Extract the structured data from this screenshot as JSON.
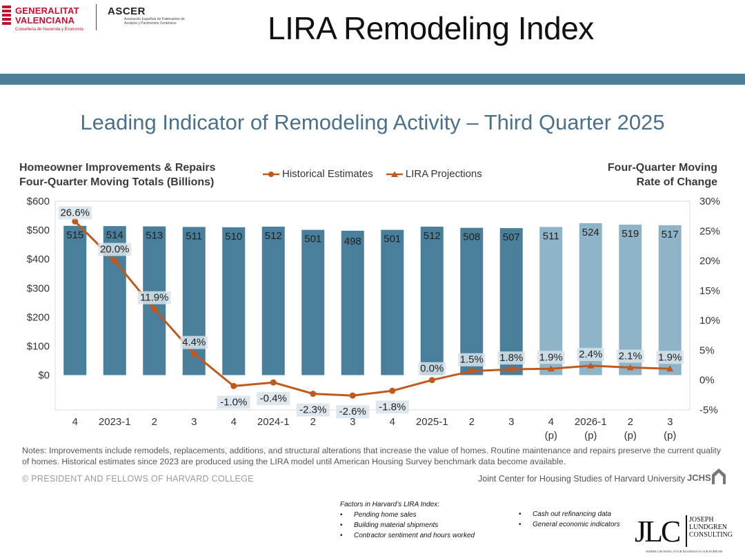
{
  "header": {
    "logo_gv_line1": "GENERALITAT",
    "logo_gv_line2": "VALENCIANA",
    "logo_gv_sub": "Conselleria de Hacienda y Economía",
    "logo_ascer_name": "ASCER",
    "logo_ascer_sub": "Asociación Española de Fabricantes de Azulejos y Pavimentos Cerámicos",
    "title": "LIRA Remodeling Index",
    "band_color": "#4e7f98"
  },
  "chart_data": {
    "type": "bar+line",
    "title": "Leading Indicator of Remodeling Activity – Third Quarter 2025",
    "ylabel_left": [
      "Homeowner Improvements & Repairs",
      "Four-Quarter Moving Totals (Billions)"
    ],
    "ylabel_right": [
      "Four-Quarter Moving",
      "Rate of Change"
    ],
    "legend": [
      "Historical Estimates",
      "LIRA Projections"
    ],
    "categories": [
      [
        "4"
      ],
      [
        "2023-1"
      ],
      [
        "2"
      ],
      [
        "3"
      ],
      [
        "4"
      ],
      [
        "2024-1"
      ],
      [
        "2"
      ],
      [
        "3"
      ],
      [
        "4"
      ],
      [
        "2025-1"
      ],
      [
        "2"
      ],
      [
        "3"
      ],
      [
        "4",
        "(p)"
      ],
      [
        "2026-1",
        "(p)"
      ],
      [
        "2",
        "(p)"
      ],
      [
        "3",
        "(p)"
      ]
    ],
    "bar_values": [
      515,
      514,
      513,
      511,
      510,
      512,
      501,
      498,
      501,
      512,
      508,
      507,
      511,
      524,
      519,
      517
    ],
    "bar_labels": [
      "515",
      "514",
      "513",
      "511",
      "510",
      "512",
      "501",
      "498",
      "501",
      "512",
      "508",
      "507",
      "511",
      "524",
      "519",
      "517"
    ],
    "projection_flags": [
      false,
      false,
      false,
      false,
      false,
      false,
      false,
      false,
      false,
      false,
      false,
      false,
      true,
      true,
      true,
      true
    ],
    "rate_values": [
      26.6,
      20.0,
      11.9,
      4.4,
      -1.0,
      -0.4,
      -2.3,
      -2.6,
      -1.8,
      0.0,
      1.5,
      1.8,
      1.9,
      2.4,
      2.1,
      1.9
    ],
    "rate_labels": [
      "26.6%",
      "20.0%",
      "11.9%",
      "4.4%",
      "-1.0%",
      "-0.4%",
      "-2.3%",
      "-2.6%",
      "-1.8%",
      "0.0%",
      "1.5%",
      "1.8%",
      "1.9%",
      "2.4%",
      "2.1%",
      "1.9%"
    ],
    "left_axis": {
      "min": -120,
      "max": 600,
      "ticks": [
        0,
        100,
        200,
        300,
        400,
        500,
        600
      ],
      "tick_labels": [
        "$0",
        "$100",
        "$200",
        "$300",
        "$400",
        "$500",
        "$600"
      ]
    },
    "right_axis": {
      "min": -5,
      "max": 30,
      "ticks": [
        -5,
        0,
        5,
        10,
        15,
        20,
        25,
        30
      ],
      "tick_labels": [
        "-5%",
        "0%",
        "5%",
        "10%",
        "15%",
        "20%",
        "25%",
        "30%"
      ]
    },
    "colors": {
      "bar_historical": "#4a7f9c",
      "bar_projection": "#8fb4c8",
      "line": "#c0591a",
      "label_box": "#d7e3ea"
    }
  },
  "notes": "Notes: Improvements include remodels, replacements, additions, and structural alterations that increase the value of homes. Routine maintenance and repairs preserve the current quality of homes. Historical estimates since 2023 are produced using the LIRA model until American Housing Survey benchmark data become available.",
  "footer": {
    "copyright": "© PRESIDENT AND FELLOWS OF HARVARD COLLEGE",
    "credit": "Joint Center for Housing Studies of Harvard University",
    "jchs_logo": "JCHS"
  },
  "factors": {
    "heading": "Factors in Harvard’s LIRA Index:",
    "col1": [
      "Pending home sales",
      "Building material shipments",
      "Contractor sentiment and hours worked"
    ],
    "col2": [
      "Cash out refinancing data",
      "General economic indicators"
    ]
  },
  "jlc": {
    "monogram": "JLC",
    "name": [
      "JOSEPH",
      "LUNDGREN",
      "CONSULTING"
    ],
    "tagline": "WHERE GROWING YOUR BUSINESS IS OUR PURPOSE"
  }
}
